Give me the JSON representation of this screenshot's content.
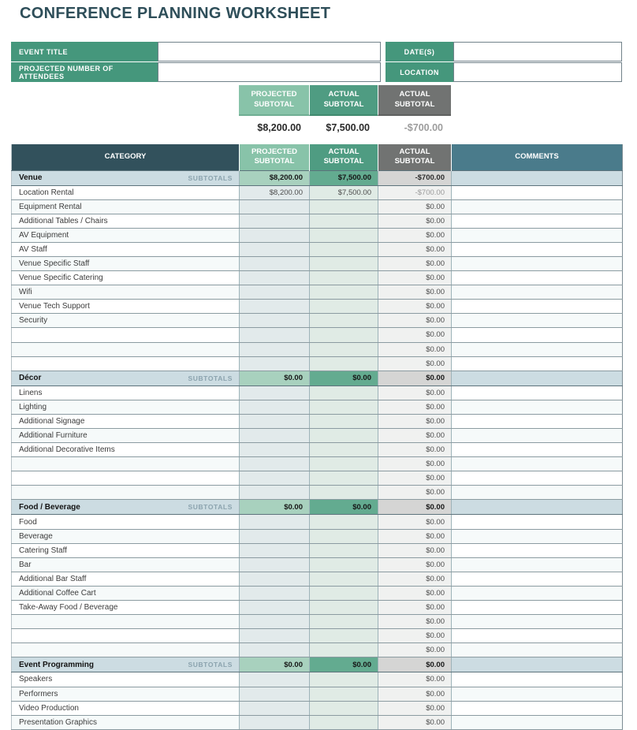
{
  "title": "CONFERENCE PLANNING WORKSHEET",
  "form": {
    "rows": [
      {
        "left_label": "EVENT TITLE",
        "left_value": "",
        "right_label": "DATE(S)",
        "right_value": ""
      },
      {
        "left_label": "PROJECTED NUMBER OF ATTENDEES",
        "left_value": "",
        "right_label": "LOCATION",
        "right_value": ""
      }
    ]
  },
  "summary": {
    "columns": [
      {
        "label": "PROJECTED SUBTOTAL",
        "value": "$8,200.00"
      },
      {
        "label": "ACTUAL SUBTOTAL",
        "value": "$7,500.00"
      },
      {
        "label": "ACTUAL SUBTOTAL",
        "value": "-$700.00"
      }
    ]
  },
  "table": {
    "headers": {
      "category": "CATEGORY",
      "projected": "PROJECTED SUBTOTAL",
      "actual": "ACTUAL SUBTOTAL",
      "actual_diff": "ACTUAL SUBTOTAL",
      "comments": "COMMENTS"
    },
    "subtotals_label": "SUBTOTALS",
    "sections": [
      {
        "name": "Venue",
        "subtotals": {
          "projected": "$8,200.00",
          "actual": "$7,500.00",
          "diff": "-$700.00"
        },
        "rows": [
          {
            "label": "Location Rental",
            "projected": "$8,200.00",
            "actual": "$7,500.00",
            "diff": "-$700.00",
            "comment": ""
          },
          {
            "label": "Equipment Rental",
            "projected": "",
            "actual": "",
            "diff": "$0.00",
            "comment": ""
          },
          {
            "label": "Additional Tables / Chairs",
            "projected": "",
            "actual": "",
            "diff": "$0.00",
            "comment": ""
          },
          {
            "label": "AV Equipment",
            "projected": "",
            "actual": "",
            "diff": "$0.00",
            "comment": ""
          },
          {
            "label": "AV Staff",
            "projected": "",
            "actual": "",
            "diff": "$0.00",
            "comment": ""
          },
          {
            "label": "Venue Specific Staff",
            "projected": "",
            "actual": "",
            "diff": "$0.00",
            "comment": ""
          },
          {
            "label": "Venue Specific Catering",
            "projected": "",
            "actual": "",
            "diff": "$0.00",
            "comment": ""
          },
          {
            "label": "Wifi",
            "projected": "",
            "actual": "",
            "diff": "$0.00",
            "comment": ""
          },
          {
            "label": "Venue Tech Support",
            "projected": "",
            "actual": "",
            "diff": "$0.00",
            "comment": ""
          },
          {
            "label": "Security",
            "projected": "",
            "actual": "",
            "diff": "$0.00",
            "comment": ""
          },
          {
            "label": "",
            "projected": "",
            "actual": "",
            "diff": "$0.00",
            "comment": ""
          },
          {
            "label": "",
            "projected": "",
            "actual": "",
            "diff": "$0.00",
            "comment": ""
          },
          {
            "label": "",
            "projected": "",
            "actual": "",
            "diff": "$0.00",
            "comment": ""
          }
        ]
      },
      {
        "name": "Décor",
        "subtotals": {
          "projected": "$0.00",
          "actual": "$0.00",
          "diff": "$0.00"
        },
        "rows": [
          {
            "label": "Linens",
            "projected": "",
            "actual": "",
            "diff": "$0.00",
            "comment": ""
          },
          {
            "label": "Lighting",
            "projected": "",
            "actual": "",
            "diff": "$0.00",
            "comment": ""
          },
          {
            "label": "Additional Signage",
            "projected": "",
            "actual": "",
            "diff": "$0.00",
            "comment": ""
          },
          {
            "label": "Additional Furniture",
            "projected": "",
            "actual": "",
            "diff": "$0.00",
            "comment": ""
          },
          {
            "label": "Additional Decorative Items",
            "projected": "",
            "actual": "",
            "diff": "$0.00",
            "comment": ""
          },
          {
            "label": "",
            "projected": "",
            "actual": "",
            "diff": "$0.00",
            "comment": ""
          },
          {
            "label": "",
            "projected": "",
            "actual": "",
            "diff": "$0.00",
            "comment": ""
          },
          {
            "label": "",
            "projected": "",
            "actual": "",
            "diff": "$0.00",
            "comment": ""
          }
        ]
      },
      {
        "name": "Food / Beverage",
        "subtotals": {
          "projected": "$0.00",
          "actual": "$0.00",
          "diff": "$0.00"
        },
        "rows": [
          {
            "label": "Food",
            "projected": "",
            "actual": "",
            "diff": "$0.00",
            "comment": ""
          },
          {
            "label": "Beverage",
            "projected": "",
            "actual": "",
            "diff": "$0.00",
            "comment": ""
          },
          {
            "label": "Catering Staff",
            "projected": "",
            "actual": "",
            "diff": "$0.00",
            "comment": ""
          },
          {
            "label": "Bar",
            "projected": "",
            "actual": "",
            "diff": "$0.00",
            "comment": ""
          },
          {
            "label": "Additional Bar Staff",
            "projected": "",
            "actual": "",
            "diff": "$0.00",
            "comment": ""
          },
          {
            "label": "Additional Coffee Cart",
            "projected": "",
            "actual": "",
            "diff": "$0.00",
            "comment": ""
          },
          {
            "label": "Take-Away Food / Beverage",
            "projected": "",
            "actual": "",
            "diff": "$0.00",
            "comment": ""
          },
          {
            "label": "",
            "projected": "",
            "actual": "",
            "diff": "$0.00",
            "comment": ""
          },
          {
            "label": "",
            "projected": "",
            "actual": "",
            "diff": "$0.00",
            "comment": ""
          },
          {
            "label": "",
            "projected": "",
            "actual": "",
            "diff": "$0.00",
            "comment": ""
          }
        ]
      },
      {
        "name": "Event Programming",
        "subtotals": {
          "projected": "$0.00",
          "actual": "$0.00",
          "diff": "$0.00"
        },
        "rows": [
          {
            "label": "Speakers",
            "projected": "",
            "actual": "",
            "diff": "$0.00",
            "comment": ""
          },
          {
            "label": "Performers",
            "projected": "",
            "actual": "",
            "diff": "$0.00",
            "comment": ""
          },
          {
            "label": "Video Production",
            "projected": "",
            "actual": "",
            "diff": "$0.00",
            "comment": ""
          },
          {
            "label": "Presentation Graphics",
            "projected": "",
            "actual": "",
            "diff": "$0.00",
            "comment": ""
          }
        ]
      }
    ]
  },
  "colors": {
    "title_text": "#2e4e59",
    "label_green": "#45977c",
    "light_green": "#88c3a9",
    "mid_green": "#4f9c82",
    "gray_header": "#717372",
    "category_header": "#32515c",
    "comments_header": "#4a7b8b",
    "section_band": "#ccdce2",
    "section_projected_cell": "#a8d1be",
    "section_actual_cell": "#63ab90",
    "section_diff_cell": "#d5d5d4",
    "data_projected_cell": "#e2eaeb",
    "data_actual_cell": "#e0ebe5",
    "data_diff_cell": "#f0f1f0",
    "subtotals_text": "#8ba3ae",
    "negative_text": "#9d9d9d"
  }
}
